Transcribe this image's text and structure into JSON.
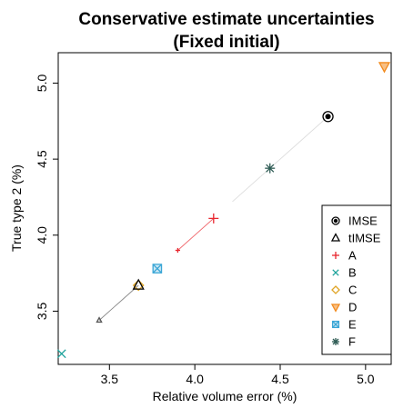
{
  "chart_data": {
    "type": "scatter",
    "title_line1": "Conservative estimate uncertainties",
    "title_line2": "(Fixed initial)",
    "xlabel": "Relative volume error (%)",
    "ylabel": "True type 2 (%)",
    "xlim": [
      3.2,
      5.15
    ],
    "ylim": [
      3.15,
      5.2
    ],
    "x_ticks": [
      3.5,
      4.0,
      4.5,
      5.0
    ],
    "x_tick_labels": [
      "3.5",
      "4.0",
      "4.5",
      "5.0"
    ],
    "y_ticks": [
      3.5,
      4.0,
      4.5,
      5.0
    ],
    "y_tick_labels": [
      "3.5",
      "4.0",
      "4.5",
      "5.0"
    ],
    "legend_position": "bottom-right",
    "series": [
      {
        "name": "IMSE",
        "marker": "circle-dot",
        "color": "#000000",
        "x": 4.78,
        "y": 4.78
      },
      {
        "name": "tIMSE",
        "marker": "triangle",
        "color": "#000000",
        "x": 3.67,
        "y": 3.67
      },
      {
        "name": "A",
        "marker": "plus",
        "color": "#e8262e",
        "x": 4.11,
        "y": 4.11
      },
      {
        "name": "B",
        "marker": "cross",
        "color": "#1fa39c",
        "x": 3.22,
        "y": 3.22
      },
      {
        "name": "C",
        "marker": "diamond",
        "color": "#e0a526",
        "x": 3.67,
        "y": 3.67
      },
      {
        "name": "D",
        "marker": "triangle-down",
        "color": "#f28a1d",
        "x": 5.11,
        "y": 5.11
      },
      {
        "name": "E",
        "marker": "square-x",
        "color": "#3aa6d6",
        "x": 3.78,
        "y": 3.78
      },
      {
        "name": "F",
        "marker": "asterisk",
        "color": "#2f5c55",
        "x": 4.44,
        "y": 4.44
      }
    ],
    "trails": [
      {
        "color": "#cfcfcf",
        "marker": "none",
        "from": [
          4.22,
          4.22
        ],
        "to": [
          4.78,
          4.78
        ]
      },
      {
        "color": "#e8262e",
        "marker": "plus",
        "from": [
          3.9,
          3.9
        ],
        "to": [
          4.11,
          4.11
        ]
      },
      {
        "color": "#555555",
        "marker": "triangle",
        "from": [
          3.44,
          3.44
        ],
        "to": [
          3.67,
          3.67
        ]
      }
    ]
  }
}
